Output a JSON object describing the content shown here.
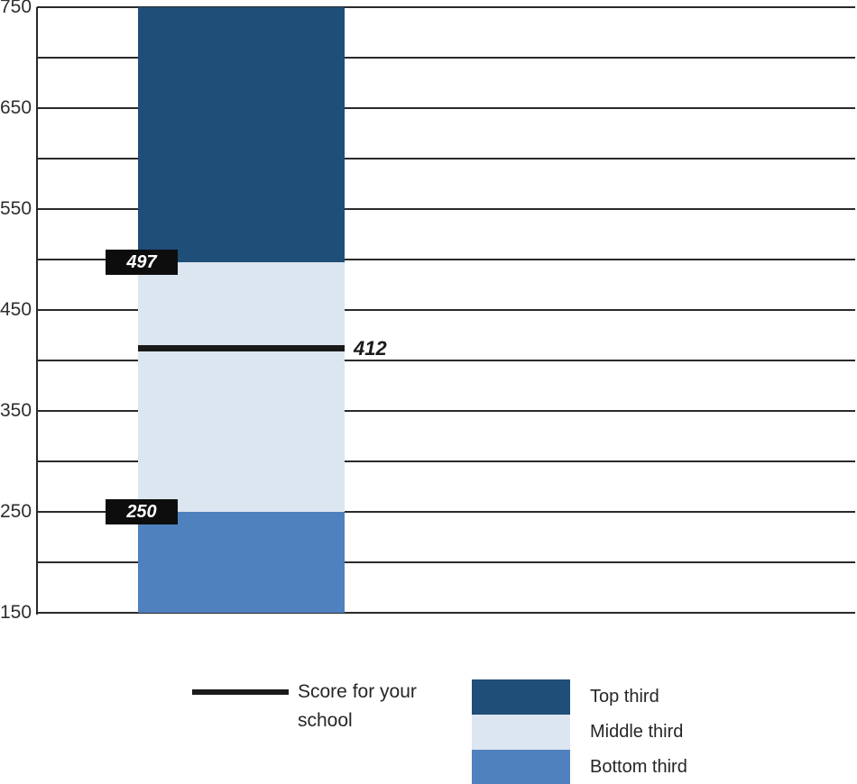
{
  "chart_data": {
    "type": "bar",
    "title": "",
    "xlabel": "",
    "ylabel": "",
    "ylim": [
      150,
      750
    ],
    "grid_step": 50,
    "grid_on": true,
    "yticks": [
      750,
      650,
      550,
      450,
      350,
      250,
      150
    ],
    "segments": [
      {
        "name": "Top third",
        "from": 497,
        "to": 750,
        "color": "#1F4E79"
      },
      {
        "name": "Middle third",
        "from": 250,
        "to": 497,
        "color": "#DCE6F1"
      },
      {
        "name": "Bottom third",
        "from": 150,
        "to": 250,
        "color": "#4E81BD"
      }
    ],
    "boundary_markers": [
      {
        "value": 497,
        "label": "497",
        "box_color": "#0D0D0D",
        "text_color": "#FFFFFF"
      },
      {
        "value": 250,
        "label": "250",
        "box_color": "#0D0D0D",
        "text_color": "#FFFFFF"
      }
    ],
    "score_line": {
      "value": 412,
      "label": "412",
      "color": "#1A1A1A"
    },
    "legend_position": "bottom",
    "legend": [
      {
        "type": "line",
        "label": "Score for your school",
        "color": "#1A1A1A"
      },
      {
        "type": "swatch",
        "label": "Top third",
        "color": "#1F4E79"
      },
      {
        "type": "swatch",
        "label": "Middle third",
        "color": "#DCE6F1"
      },
      {
        "type": "swatch",
        "label": "Bottom third",
        "color": "#4E81BD"
      }
    ]
  }
}
